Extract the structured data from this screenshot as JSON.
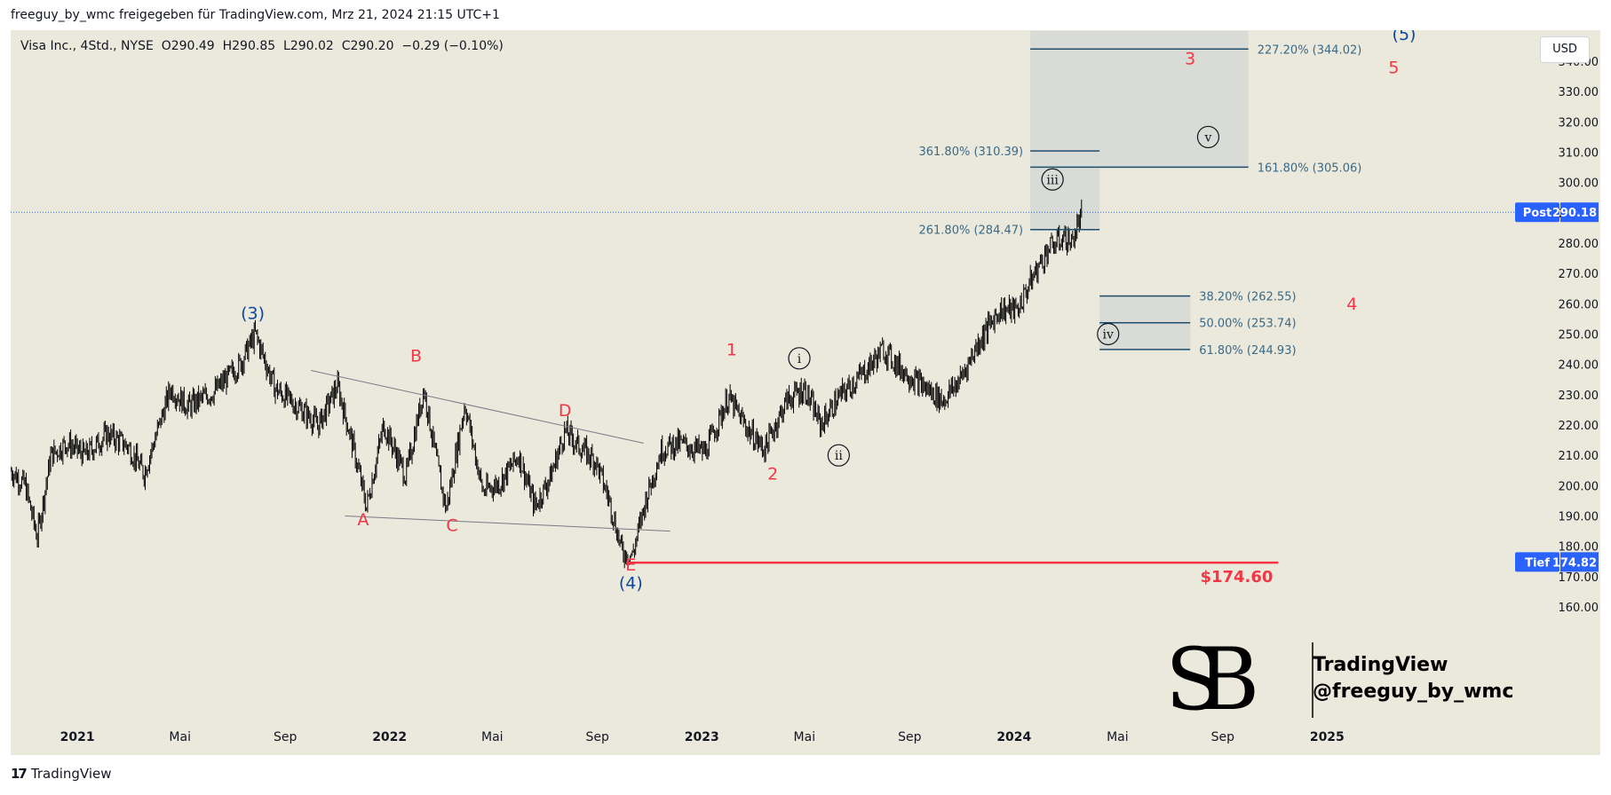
{
  "header": {
    "published_line": "freeguy_by_wmc freigegeben für TradingView.com, Mrz 21, 2024 21:15 UTC+1"
  },
  "symbol_bar": {
    "text": "Visa Inc., 4Std., NYSE  O290.49  H290.85  L290.02  C290.20  −0.29 (−0.10%)"
  },
  "currency_button": "USD",
  "price_tags": {
    "post_label": "Post",
    "post_value": "290.18",
    "low_label": "Tief",
    "low_value": "174.82"
  },
  "low_line_label": "$174.60",
  "watermark": {
    "title": "TradingView",
    "handle": "@freeguy_by_wmc",
    "monogram": "SB"
  },
  "footer": {
    "brand": "TradingView",
    "mark": "17"
  },
  "colors": {
    "background": "#ebe8dc",
    "candles": "#000000",
    "wave_red": "#f23645",
    "wave_blue": "#0d47a1",
    "fib_line": "#1e4d6b",
    "fib_text": "#3a6a88",
    "fib_zone": "#d5d8d5",
    "axis_text": "#131722",
    "post_tag": "#2962ff",
    "low_tag": "#2962ff",
    "low_line": "#f23645"
  },
  "chart_data": {
    "type": "candlestick",
    "symbol": "Visa Inc.",
    "interval": "4Std.",
    "exchange": "NYSE",
    "ohlc": {
      "open": 290.49,
      "high": 290.85,
      "low": 290.02,
      "close": 290.2,
      "change": -0.29,
      "change_pct": -0.1
    },
    "y_axis": {
      "currency": "USD",
      "ylim": [
        150,
        350
      ],
      "ticks": [
        160,
        170,
        180,
        190,
        200,
        210,
        220,
        230,
        240,
        250,
        260,
        270,
        280,
        290,
        300,
        310,
        320,
        330,
        340
      ],
      "tick_labels": [
        "160.00",
        "170.00",
        "180.00",
        "190.00",
        "200.00",
        "210.00",
        "220.00",
        "230.00",
        "240.00",
        "250.00",
        "260.00",
        "270.00",
        "280.00",
        "290.00",
        "300.00",
        "310.00",
        "320.00",
        "330.00",
        "340.00"
      ]
    },
    "x_axis": {
      "xlim": [
        "2020-10-15",
        "2025-08-15"
      ],
      "ticks": [
        {
          "date": "2021-01-01",
          "label": "2021",
          "bold": true
        },
        {
          "date": "2021-05-01",
          "label": "Mai",
          "bold": false
        },
        {
          "date": "2021-09-01",
          "label": "Sep",
          "bold": false
        },
        {
          "date": "2022-01-01",
          "label": "2022",
          "bold": true
        },
        {
          "date": "2022-05-01",
          "label": "Mai",
          "bold": false
        },
        {
          "date": "2022-09-01",
          "label": "Sep",
          "bold": false
        },
        {
          "date": "2023-01-01",
          "label": "2023",
          "bold": true
        },
        {
          "date": "2023-05-01",
          "label": "Mai",
          "bold": false
        },
        {
          "date": "2023-09-01",
          "label": "Sep",
          "bold": false
        },
        {
          "date": "2024-01-01",
          "label": "2024",
          "bold": true
        },
        {
          "date": "2024-05-01",
          "label": "Mai",
          "bold": false
        },
        {
          "date": "2024-09-01",
          "label": "Sep",
          "bold": false
        },
        {
          "date": "2025-01-01",
          "label": "2025",
          "bold": true
        }
      ]
    },
    "price_path": [
      [
        "2020-10-15",
        205
      ],
      [
        "2020-11-01",
        200
      ],
      [
        "2020-11-15",
        183
      ],
      [
        "2020-12-01",
        210
      ],
      [
        "2020-12-20",
        214
      ],
      [
        "2021-01-10",
        210
      ],
      [
        "2021-02-05",
        217
      ],
      [
        "2021-03-01",
        213
      ],
      [
        "2021-03-20",
        204
      ],
      [
        "2021-04-20",
        232
      ],
      [
        "2021-05-10",
        226
      ],
      [
        "2021-06-10",
        231
      ],
      [
        "2021-07-10",
        240
      ],
      [
        "2021-07-28",
        250
      ],
      [
        "2021-08-20",
        232
      ],
      [
        "2021-09-20",
        225
      ],
      [
        "2021-10-10",
        220
      ],
      [
        "2021-11-01",
        233
      ],
      [
        "2021-11-20",
        212
      ],
      [
        "2021-12-05",
        193
      ],
      [
        "2021-12-25",
        220
      ],
      [
        "2022-01-20",
        203
      ],
      [
        "2022-02-10",
        232
      ],
      [
        "2022-02-25",
        208
      ],
      [
        "2022-03-08",
        192
      ],
      [
        "2022-03-30",
        227
      ],
      [
        "2022-04-20",
        198
      ],
      [
        "2022-05-10",
        201
      ],
      [
        "2022-06-01",
        210
      ],
      [
        "2022-06-20",
        193
      ],
      [
        "2022-07-08",
        203
      ],
      [
        "2022-07-25",
        218
      ],
      [
        "2022-08-10",
        213
      ],
      [
        "2022-08-30",
        208
      ],
      [
        "2022-09-15",
        195
      ],
      [
        "2022-09-30",
        178
      ],
      [
        "2022-10-12",
        177
      ],
      [
        "2022-10-28",
        196
      ],
      [
        "2022-11-15",
        212
      ],
      [
        "2022-12-05",
        214
      ],
      [
        "2023-01-05",
        211
      ],
      [
        "2023-02-01",
        229
      ],
      [
        "2023-02-25",
        218
      ],
      [
        "2023-03-15",
        212
      ],
      [
        "2023-04-10",
        228
      ],
      [
        "2023-05-01",
        232
      ],
      [
        "2023-05-20",
        220
      ],
      [
        "2023-06-10",
        229
      ],
      [
        "2023-07-15",
        239
      ],
      [
        "2023-08-01",
        245
      ],
      [
        "2023-08-20",
        239
      ],
      [
        "2023-09-20",
        232
      ],
      [
        "2023-10-10",
        228
      ],
      [
        "2023-10-30",
        235
      ],
      [
        "2023-11-20",
        247
      ],
      [
        "2023-12-15",
        258
      ],
      [
        "2024-01-05",
        258
      ],
      [
        "2024-01-25",
        270
      ],
      [
        "2024-02-10",
        278
      ],
      [
        "2024-02-28",
        282
      ],
      [
        "2024-03-08",
        280
      ],
      [
        "2024-03-21",
        290
      ]
    ],
    "trendlines": [
      {
        "from": [
          "2021-10-01",
          238
        ],
        "to": [
          "2022-10-25",
          214
        ]
      },
      {
        "from": [
          "2021-11-10",
          190
        ],
        "to": [
          "2022-11-25",
          185
        ]
      }
    ],
    "wave_labels": [
      {
        "text": "(3)",
        "date": "2021-07-25",
        "price": 255,
        "color": "blue"
      },
      {
        "text": "(4)",
        "date": "2022-10-10",
        "price": 166,
        "color": "blue"
      },
      {
        "text": "(5)",
        "date": "2025-04-01",
        "price": 347,
        "color": "blue"
      },
      {
        "text": "A",
        "date": "2021-12-01",
        "price": 187,
        "color": "red"
      },
      {
        "text": "B",
        "date": "2022-02-01",
        "price": 241,
        "color": "red"
      },
      {
        "text": "C",
        "date": "2022-03-15",
        "price": 185,
        "color": "red"
      },
      {
        "text": "D",
        "date": "2022-07-25",
        "price": 223,
        "color": "red"
      },
      {
        "text": "E",
        "date": "2022-10-10",
        "price": 172,
        "color": "red"
      },
      {
        "text": "1",
        "date": "2023-02-05",
        "price": 243,
        "color": "red"
      },
      {
        "text": "2",
        "date": "2023-03-25",
        "price": 202,
        "color": "red"
      },
      {
        "text": "3",
        "date": "2024-07-25",
        "price": 339,
        "color": "red"
      },
      {
        "text": "4",
        "date": "2025-01-30",
        "price": 258,
        "color": "red"
      },
      {
        "text": "5",
        "date": "2025-03-20",
        "price": 336,
        "color": "red"
      }
    ],
    "sub_wave_labels": [
      {
        "text": "i",
        "date": "2023-04-25",
        "price": 242
      },
      {
        "text": "ii",
        "date": "2023-06-10",
        "price": 210
      },
      {
        "text": "iii",
        "date": "2024-02-15",
        "price": 301
      },
      {
        "text": "iv",
        "date": "2024-04-20",
        "price": 250
      },
      {
        "text": "v",
        "date": "2024-08-15",
        "price": 315
      }
    ],
    "fib_levels": [
      {
        "label": "227.20% (344.02)",
        "price": 344.02,
        "from": "2024-01-20",
        "to": "2024-10-01",
        "label_side": "right"
      },
      {
        "label": "161.80% (305.06)",
        "price": 305.06,
        "from": "2024-01-20",
        "to": "2024-10-01",
        "label_side": "right"
      },
      {
        "label": "361.80% (310.39)",
        "price": 310.39,
        "from": "2024-01-20",
        "to": "2024-04-10",
        "label_side": "left"
      },
      {
        "label": "261.80% (284.47)",
        "price": 284.47,
        "from": "2024-01-20",
        "to": "2024-04-10",
        "label_side": "left"
      },
      {
        "label": "38.20% (262.55)",
        "price": 262.55,
        "from": "2024-04-10",
        "to": "2024-07-25",
        "label_side": "right"
      },
      {
        "label": "50.00% (253.74)",
        "price": 253.74,
        "from": "2024-04-10",
        "to": "2024-07-25",
        "label_side": "right"
      },
      {
        "label": "61.80% (244.93)",
        "price": 244.93,
        "from": "2024-04-10",
        "to": "2024-07-25",
        "label_side": "right"
      }
    ],
    "low_line": {
      "price": 174.6,
      "from": "2022-10-05",
      "to": "2024-11-05"
    },
    "last_price": 290.18,
    "low_price": 174.82
  }
}
